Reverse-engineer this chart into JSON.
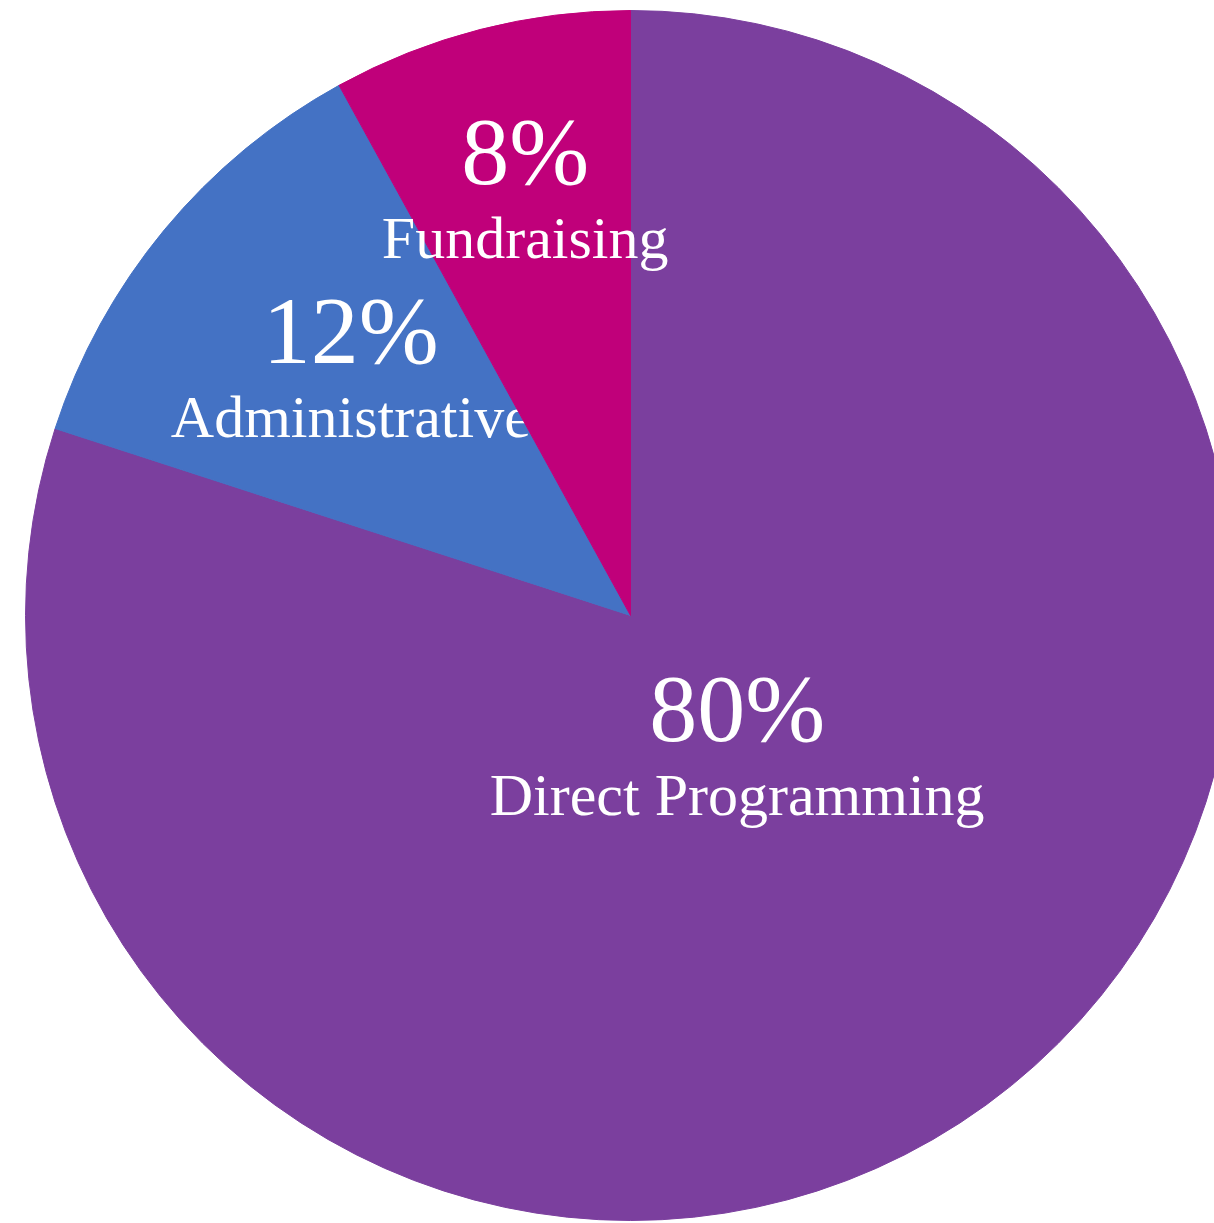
{
  "chart_data": {
    "type": "pie",
    "categories": [
      "Direct Programming",
      "Administrative",
      "Fundraising"
    ],
    "values": [
      80,
      12,
      8
    ],
    "colors": [
      "#7b3f9e",
      "#4472c4",
      "#c0007a"
    ],
    "value_labels": [
      "80%",
      "12%",
      "8%"
    ]
  }
}
